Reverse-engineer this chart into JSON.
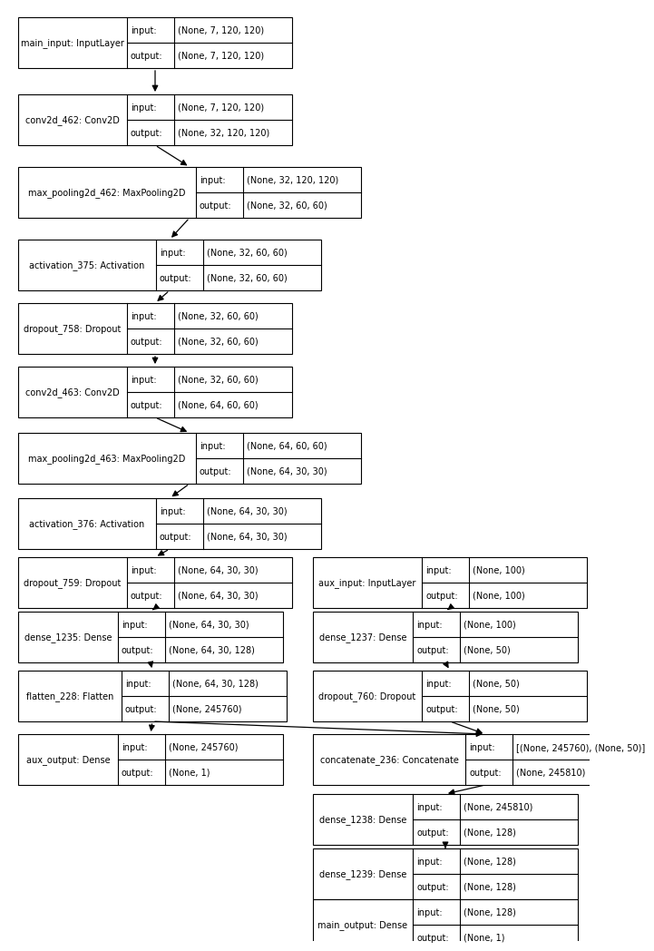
{
  "bg_color": "#ffffff",
  "box_edge_color": "#000000",
  "text_color": "#000000",
  "nodes": [
    {
      "id": "main_input",
      "label": "main_input: InputLayer",
      "input": "(None, 7, 120, 120)",
      "output": "(None, 7, 120, 120)",
      "col": 0,
      "row": 0
    },
    {
      "id": "conv2d_462",
      "label": "conv2d_462: Conv2D",
      "input": "(None, 7, 120, 120)",
      "output": "(None, 32, 120, 120)",
      "col": 0,
      "row": 1
    },
    {
      "id": "max_pooling2d_462",
      "label": "max_pooling2d_462: MaxPooling2D",
      "input": "(None, 32, 120, 120)",
      "output": "(None, 32, 60, 60)",
      "col": 0,
      "row": 2
    },
    {
      "id": "activation_375",
      "label": "activation_375: Activation",
      "input": "(None, 32, 60, 60)",
      "output": "(None, 32, 60, 60)",
      "col": 0,
      "row": 3
    },
    {
      "id": "dropout_758",
      "label": "dropout_758: Dropout",
      "input": "(None, 32, 60, 60)",
      "output": "(None, 32, 60, 60)",
      "col": 0,
      "row": 4
    },
    {
      "id": "conv2d_463",
      "label": "conv2d_463: Conv2D",
      "input": "(None, 32, 60, 60)",
      "output": "(None, 64, 60, 60)",
      "col": 0,
      "row": 5
    },
    {
      "id": "max_pooling2d_463",
      "label": "max_pooling2d_463: MaxPooling2D",
      "input": "(None, 64, 60, 60)",
      "output": "(None, 64, 30, 30)",
      "col": 0,
      "row": 6
    },
    {
      "id": "activation_376",
      "label": "activation_376: Activation",
      "input": "(None, 64, 30, 30)",
      "output": "(None, 64, 30, 30)",
      "col": 0,
      "row": 7
    },
    {
      "id": "dropout_759",
      "label": "dropout_759: Dropout",
      "input": "(None, 64, 30, 30)",
      "output": "(None, 64, 30, 30)",
      "col": 0,
      "row": 8
    },
    {
      "id": "aux_input",
      "label": "aux_input: InputLayer",
      "input": "(None, 100)",
      "output": "(None, 100)",
      "col": 1,
      "row": 8
    },
    {
      "id": "dense_1235",
      "label": "dense_1235: Dense",
      "input": "(None, 64, 30, 30)",
      "output": "(None, 64, 30, 128)",
      "col": 0,
      "row": 9
    },
    {
      "id": "dense_1237",
      "label": "dense_1237: Dense",
      "input": "(None, 100)",
      "output": "(None, 50)",
      "col": 1,
      "row": 9
    },
    {
      "id": "flatten_228",
      "label": "flatten_228: Flatten",
      "input": "(None, 64, 30, 128)",
      "output": "(None, 245760)",
      "col": 0,
      "row": 10
    },
    {
      "id": "dropout_760",
      "label": "dropout_760: Dropout",
      "input": "(None, 50)",
      "output": "(None, 50)",
      "col": 1,
      "row": 10
    },
    {
      "id": "aux_output",
      "label": "aux_output: Dense",
      "input": "(None, 245760)",
      "output": "(None, 1)",
      "col": 0,
      "row": 11
    },
    {
      "id": "concatenate_236",
      "label": "concatenate_236: Concatenate",
      "input": "[(None, 245760), (None, 50)]",
      "output": "(None, 245810)",
      "col": 1,
      "row": 11
    },
    {
      "id": "dense_1238",
      "label": "dense_1238: Dense",
      "input": "(None, 245810)",
      "output": "(None, 128)",
      "col": 1,
      "row": 12
    },
    {
      "id": "dense_1239",
      "label": "dense_1239: Dense",
      "input": "(None, 128)",
      "output": "(None, 128)",
      "col": 1,
      "row": 13
    },
    {
      "id": "main_output",
      "label": "main_output: Dense",
      "input": "(None, 128)",
      "output": "(None, 1)",
      "col": 1,
      "row": 14
    }
  ],
  "connections": [
    [
      "main_input",
      "conv2d_462"
    ],
    [
      "conv2d_462",
      "max_pooling2d_462"
    ],
    [
      "max_pooling2d_462",
      "activation_375"
    ],
    [
      "activation_375",
      "dropout_758"
    ],
    [
      "dropout_758",
      "conv2d_463"
    ],
    [
      "conv2d_463",
      "max_pooling2d_463"
    ],
    [
      "max_pooling2d_463",
      "activation_376"
    ],
    [
      "activation_376",
      "dropout_759"
    ],
    [
      "dropout_759",
      "dense_1235"
    ],
    [
      "aux_input",
      "dense_1237"
    ],
    [
      "dense_1235",
      "flatten_228"
    ],
    [
      "dense_1237",
      "dropout_760"
    ],
    [
      "flatten_228",
      "aux_output"
    ],
    [
      "flatten_228",
      "concatenate_236"
    ],
    [
      "dropout_760",
      "concatenate_236"
    ],
    [
      "concatenate_236",
      "dense_1238"
    ],
    [
      "dense_1238",
      "dense_1239"
    ],
    [
      "dense_1239",
      "main_output"
    ]
  ]
}
